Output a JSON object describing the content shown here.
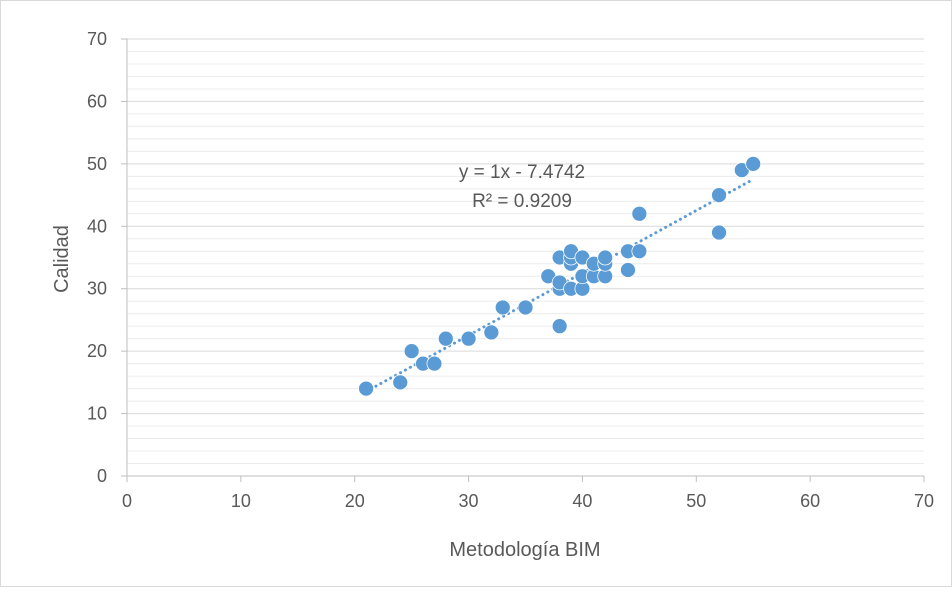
{
  "chart_data": {
    "type": "scatter",
    "title": "",
    "xlabel": "Metodología BIM",
    "ylabel": "Calidad",
    "xlim": [
      0,
      70
    ],
    "ylim": [
      0,
      70
    ],
    "x_ticks": [
      0,
      10,
      20,
      30,
      40,
      50,
      60,
      70
    ],
    "y_ticks": [
      0,
      10,
      20,
      30,
      40,
      50,
      60,
      70
    ],
    "grid": true,
    "series": [
      {
        "points": [
          {
            "x": 21,
            "y": 14
          },
          {
            "x": 24,
            "y": 15
          },
          {
            "x": 25,
            "y": 20
          },
          {
            "x": 26,
            "y": 18
          },
          {
            "x": 27,
            "y": 18
          },
          {
            "x": 28,
            "y": 22
          },
          {
            "x": 30,
            "y": 22
          },
          {
            "x": 32,
            "y": 23
          },
          {
            "x": 33,
            "y": 27
          },
          {
            "x": 35,
            "y": 27
          },
          {
            "x": 37,
            "y": 32
          },
          {
            "x": 38,
            "y": 24
          },
          {
            "x": 38,
            "y": 30
          },
          {
            "x": 38,
            "y": 31
          },
          {
            "x": 38,
            "y": 35
          },
          {
            "x": 39,
            "y": 30
          },
          {
            "x": 39,
            "y": 34
          },
          {
            "x": 39,
            "y": 35
          },
          {
            "x": 39,
            "y": 36
          },
          {
            "x": 40,
            "y": 30
          },
          {
            "x": 40,
            "y": 32
          },
          {
            "x": 40,
            "y": 35
          },
          {
            "x": 41,
            "y": 32
          },
          {
            "x": 41,
            "y": 34
          },
          {
            "x": 42,
            "y": 32
          },
          {
            "x": 42,
            "y": 34
          },
          {
            "x": 42,
            "y": 35
          },
          {
            "x": 44,
            "y": 33
          },
          {
            "x": 44,
            "y": 36
          },
          {
            "x": 45,
            "y": 36
          },
          {
            "x": 45,
            "y": 42
          },
          {
            "x": 52,
            "y": 39
          },
          {
            "x": 52,
            "y": 45
          },
          {
            "x": 54,
            "y": 49
          },
          {
            "x": 55,
            "y": 50
          }
        ]
      }
    ],
    "trendline": {
      "type": "linear",
      "slope": 1,
      "intercept": -7.4742,
      "x_range": [
        21,
        55
      ],
      "equation_label": "y = 1x - 7.4742",
      "r2_label": "R² = 0.9209"
    },
    "colors": {
      "marker": "#5b9bd5",
      "trendline": "#5b9bd5",
      "gridline": "#d9d9d9",
      "axis": "#bfbfbf",
      "text": "#595959",
      "border": "#d9d9d9"
    }
  }
}
